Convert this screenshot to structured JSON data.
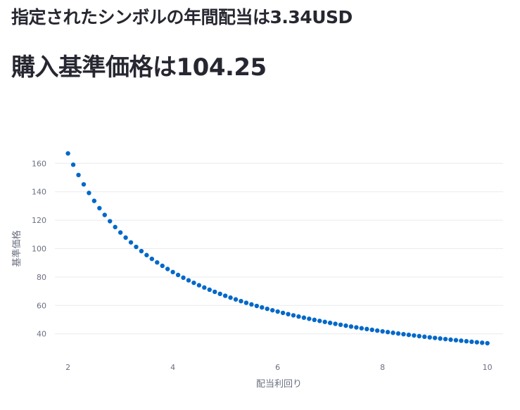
{
  "header": {
    "dividend_label": "指定されたシンボルの年間配当は",
    "dividend_value": "3.34USD",
    "price_label": "購入基準価格は",
    "price_value": "104.25"
  },
  "colors": {
    "point": "#0068c9",
    "text": "#262730",
    "axis_text": "#6b6f80",
    "grid": "#e8eaee"
  },
  "chart_data": {
    "type": "scatter",
    "xlabel": "配当利回り",
    "ylabel": "基準価格",
    "xlim": [
      1.75,
      10.3
    ],
    "ylim": [
      25,
      175
    ],
    "xticks": [
      2,
      4,
      6,
      8,
      10
    ],
    "yticks": [
      40,
      60,
      80,
      100,
      120,
      140,
      160
    ],
    "grid": "horizontal",
    "legend": "none",
    "x": [
      2.0,
      2.1,
      2.2,
      2.3,
      2.4,
      2.5,
      2.6,
      2.7,
      2.8,
      2.9,
      3.0,
      3.1,
      3.2,
      3.3,
      3.4,
      3.5,
      3.6,
      3.7,
      3.8,
      3.9,
      4.0,
      4.1,
      4.2,
      4.3,
      4.4,
      4.5,
      4.6,
      4.7,
      4.8,
      4.9,
      5.0,
      5.1,
      5.2,
      5.3,
      5.4,
      5.5,
      5.6,
      5.7,
      5.8,
      5.9,
      6.0,
      6.1,
      6.2,
      6.3,
      6.4,
      6.5,
      6.6,
      6.7,
      6.8,
      6.9,
      7.0,
      7.1,
      7.2,
      7.3,
      7.4,
      7.5,
      7.6,
      7.7,
      7.8,
      7.9,
      8.0,
      8.1,
      8.2,
      8.3,
      8.4,
      8.5,
      8.6,
      8.7,
      8.8,
      8.9,
      9.0,
      9.1,
      9.2,
      9.3,
      9.4,
      9.5,
      9.6,
      9.7,
      9.8,
      9.9,
      10.0
    ],
    "y": [
      167.0,
      159.05,
      151.82,
      145.22,
      139.17,
      133.6,
      128.46,
      123.7,
      119.29,
      115.17,
      111.33,
      107.74,
      104.38,
      101.21,
      98.24,
      95.43,
      92.78,
      90.27,
      87.89,
      85.64,
      83.5,
      81.46,
      79.52,
      77.67,
      75.91,
      74.22,
      72.61,
      71.06,
      69.58,
      68.16,
      66.8,
      65.49,
      64.23,
      63.02,
      61.85,
      60.73,
      59.64,
      58.6,
      57.59,
      56.61,
      55.67,
      54.75,
      53.87,
      53.02,
      52.19,
      51.38,
      50.61,
      49.85,
      49.12,
      48.41,
      47.71,
      47.04,
      46.39,
      45.75,
      45.14,
      44.53,
      43.95,
      43.38,
      42.82,
      42.28,
      41.75,
      41.23,
      40.73,
      40.24,
      39.76,
      39.29,
      38.84,
      38.39,
      37.95,
      37.53,
      37.11,
      36.7,
      36.3,
      35.91,
      35.53,
      35.16,
      34.79,
      34.43,
      34.08,
      33.74,
      33.4
    ]
  }
}
